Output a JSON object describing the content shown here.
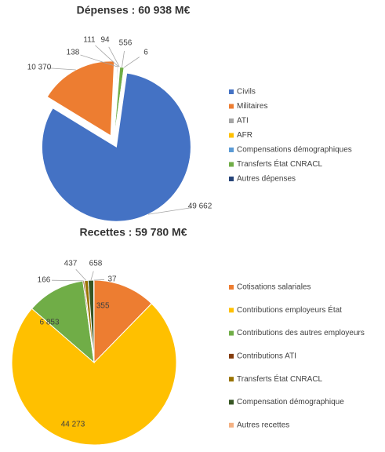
{
  "chart_data": [
    {
      "type": "pie",
      "title": "Dépenses : 60 938 M€",
      "categories": [
        "Civils",
        "Militaires",
        "ATI",
        "AFR",
        "Compensations démographiques",
        "Transferts État CNRACL",
        "Autres dépenses"
      ],
      "values": [
        49662,
        10370,
        138,
        111,
        94,
        556,
        6
      ],
      "value_labels": [
        "49 662",
        "10 370",
        "138",
        "111",
        "94",
        "556",
        "6"
      ],
      "colors": [
        "#4472c4",
        "#ed7d31",
        "#a5a5a5",
        "#ffc000",
        "#5b9bd5",
        "#70ad47",
        "#264478"
      ],
      "legend": "right"
    },
    {
      "type": "pie",
      "title": "Recettes : 59 780 M€",
      "categories": [
        "Cotisations salariales",
        "Contributions employeurs État",
        "Contributions des autres employeurs",
        "Contributions ATI",
        "Transferts État CNRACL",
        "Compensation démographique",
        "Autres recettes"
      ],
      "values": [
        7355,
        44273,
        6853,
        166,
        437,
        658,
        37
      ],
      "value_labels": [
        "7 355",
        "44 273",
        "6 853",
        "166",
        "437",
        "658",
        "37"
      ],
      "colors": [
        "#ed7d31",
        "#ffc000",
        "#70ad47",
        "#843c0c",
        "#997300",
        "#375623",
        "#f4b183"
      ],
      "legend": "right"
    }
  ]
}
